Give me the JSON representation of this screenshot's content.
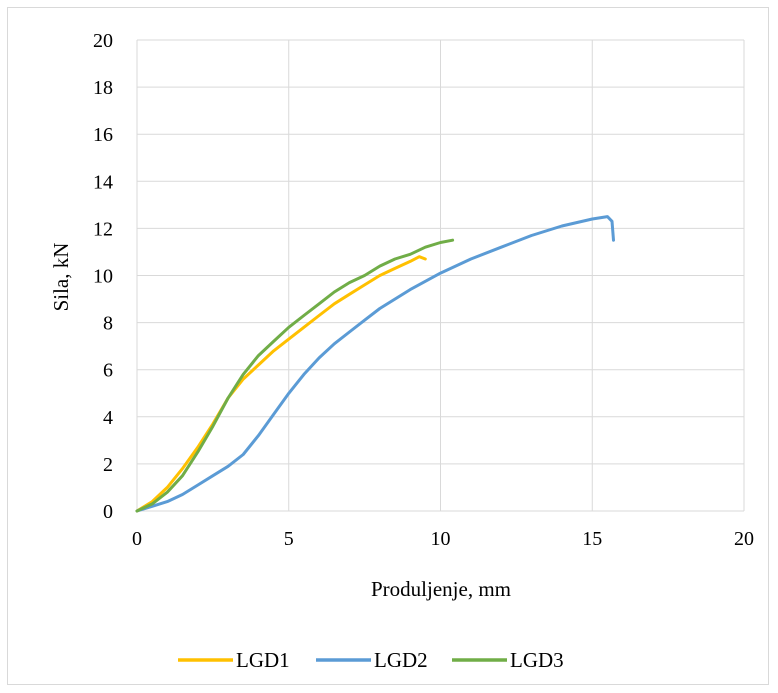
{
  "chart_data": {
    "type": "line",
    "title": "",
    "xlabel": "Produljenje, mm",
    "ylabel": "Sila, kN",
    "xlim": [
      0,
      20
    ],
    "ylim": [
      0,
      20
    ],
    "x_ticks": [
      "0",
      "5",
      "10",
      "15",
      "20"
    ],
    "y_ticks": [
      "0",
      "2",
      "4",
      "6",
      "8",
      "10",
      "12",
      "14",
      "16",
      "18",
      "20"
    ],
    "grid": true,
    "legend_position": "bottom",
    "series": [
      {
        "name": "LGD1",
        "color": "#ffc000",
        "points": [
          [
            0,
            0
          ],
          [
            0.5,
            0.4
          ],
          [
            1,
            1.0
          ],
          [
            1.5,
            1.8
          ],
          [
            2,
            2.7
          ],
          [
            2.5,
            3.7
          ],
          [
            3,
            4.8
          ],
          [
            3.5,
            5.6
          ],
          [
            4,
            6.2
          ],
          [
            4.5,
            6.8
          ],
          [
            5,
            7.3
          ],
          [
            5.5,
            7.8
          ],
          [
            6,
            8.3
          ],
          [
            6.5,
            8.8
          ],
          [
            7,
            9.2
          ],
          [
            7.5,
            9.6
          ],
          [
            8,
            10.0
          ],
          [
            8.5,
            10.3
          ],
          [
            9,
            10.6
          ],
          [
            9.3,
            10.8
          ],
          [
            9.5,
            10.7
          ]
        ]
      },
      {
        "name": "LGD2",
        "color": "#5b9bd5",
        "points": [
          [
            0,
            0
          ],
          [
            0.5,
            0.2
          ],
          [
            1,
            0.4
          ],
          [
            1.5,
            0.7
          ],
          [
            2,
            1.1
          ],
          [
            2.5,
            1.5
          ],
          [
            3,
            1.9
          ],
          [
            3.5,
            2.4
          ],
          [
            4,
            3.2
          ],
          [
            4.5,
            4.1
          ],
          [
            5,
            5.0
          ],
          [
            5.5,
            5.8
          ],
          [
            6,
            6.5
          ],
          [
            6.5,
            7.1
          ],
          [
            7,
            7.6
          ],
          [
            7.5,
            8.1
          ],
          [
            8,
            8.6
          ],
          [
            9,
            9.4
          ],
          [
            10,
            10.1
          ],
          [
            11,
            10.7
          ],
          [
            12,
            11.2
          ],
          [
            13,
            11.7
          ],
          [
            14,
            12.1
          ],
          [
            15,
            12.4
          ],
          [
            15.5,
            12.5
          ],
          [
            15.65,
            12.3
          ],
          [
            15.7,
            11.5
          ]
        ]
      },
      {
        "name": "LGD3",
        "color": "#70ad47",
        "points": [
          [
            0,
            0
          ],
          [
            0.5,
            0.3
          ],
          [
            1,
            0.8
          ],
          [
            1.5,
            1.5
          ],
          [
            2,
            2.5
          ],
          [
            2.5,
            3.6
          ],
          [
            3,
            4.8
          ],
          [
            3.5,
            5.8
          ],
          [
            4,
            6.6
          ],
          [
            4.5,
            7.2
          ],
          [
            5,
            7.8
          ],
          [
            5.5,
            8.3
          ],
          [
            6,
            8.8
          ],
          [
            6.5,
            9.3
          ],
          [
            7,
            9.7
          ],
          [
            7.5,
            10.0
          ],
          [
            8,
            10.4
          ],
          [
            8.5,
            10.7
          ],
          [
            9,
            10.9
          ],
          [
            9.5,
            11.2
          ],
          [
            10,
            11.4
          ],
          [
            10.4,
            11.5
          ]
        ]
      }
    ]
  }
}
